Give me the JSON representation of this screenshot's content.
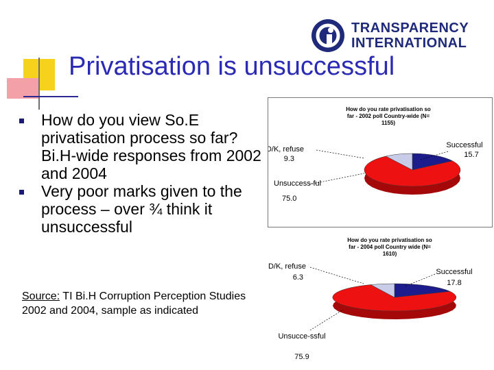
{
  "slide": {
    "title": "Privatisation is unsuccessful",
    "bullets": [
      "How do you view So.E privatisation process so far? Bi.H-wide responses from 2002 and 2004",
      "Very poor marks given to the process – over ¾ think it unsuccessful"
    ],
    "source_label": "Source:",
    "source_text": " TI Bi.H Corruption Perception Studies 2002 and 2004, sample as indicated"
  },
  "logo": {
    "line1": "TRANSPARENCY",
    "line2": "INTERNATIONAL",
    "brand_color": "#1f2a7a"
  },
  "colors": {
    "title": "#2a2ab4",
    "successful": "#1c1c8c",
    "unsuccessful": "#ee1111",
    "dk_refuse": "#c8cce8"
  },
  "chart_data": [
    {
      "type": "pie",
      "title": "How do you rate privatisation so far - 2002 poll Country-wide (N= 1155)",
      "categories": [
        "Successful",
        "Unsuccessful",
        "D/K, refuse"
      ],
      "labels": [
        "Successful",
        "Unsuccess-ful",
        "D/K, refuse"
      ],
      "values": [
        15.7,
        75.0,
        9.3
      ],
      "value_labels": [
        "15.7",
        "75.0",
        "9.3"
      ]
    },
    {
      "type": "pie",
      "title": "How do you rate privatisation so far - 2004 poll Country wide (N= 1610)",
      "categories": [
        "Successful",
        "Unsuccessful",
        "D/K, refuse"
      ],
      "labels": [
        "Successful",
        "Unsucce-ssful",
        "D/K, refuse"
      ],
      "values": [
        17.8,
        75.9,
        6.3
      ],
      "value_labels": [
        "17.8",
        "75.9",
        "6.3"
      ]
    }
  ]
}
